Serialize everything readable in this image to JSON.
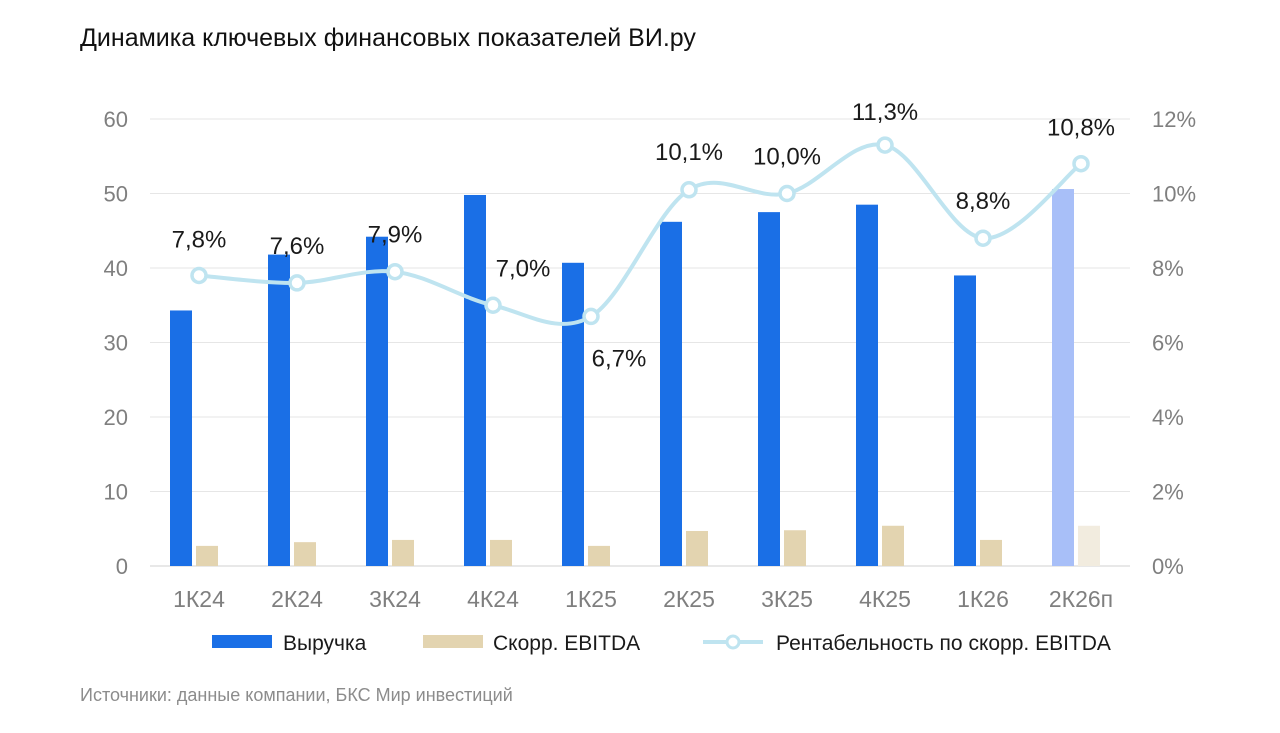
{
  "title": "Динамика ключевых финансовых показателей ВИ.ру",
  "source": "Источники: данные компании, БКС Мир инвестиций",
  "chart_data": {
    "type": "bar",
    "categories": [
      "1К24",
      "2К24",
      "3К24",
      "4К24",
      "1К25",
      "2К25",
      "3К25",
      "4К25",
      "1К26",
      "2К26п"
    ],
    "y_left": {
      "min": 0,
      "max": 60,
      "ticks": [
        "0",
        "10",
        "20",
        "30",
        "40",
        "50",
        "60"
      ],
      "tick_values": [
        0,
        10,
        20,
        30,
        40,
        50,
        60
      ]
    },
    "y_right": {
      "min": 0,
      "max": 12,
      "ticks": [
        "0%",
        "2%",
        "4%",
        "6%",
        "8%",
        "10%",
        "12%"
      ],
      "tick_values": [
        0,
        2,
        4,
        6,
        8,
        10,
        12
      ]
    },
    "grid": true,
    "legend_position": "bottom",
    "forecast_last_category": true,
    "series": [
      {
        "name": "Выручка",
        "kind": "bar",
        "axis": "left",
        "color": "#1a6fe6",
        "forecast_color": "#a8bff8",
        "values": [
          34.3,
          41.8,
          44.2,
          49.8,
          40.7,
          46.2,
          47.5,
          48.5,
          39.0,
          50.6
        ]
      },
      {
        "name": "Скорр. EBITDA",
        "kind": "bar",
        "axis": "left",
        "color": "#e3d4b0",
        "forecast_color": "#f2ecdf",
        "values": [
          2.7,
          3.2,
          3.5,
          3.5,
          2.7,
          4.7,
          4.8,
          5.4,
          3.5,
          5.4
        ]
      },
      {
        "name": "Рентабельность по скорр. EBITDA",
        "kind": "line",
        "axis": "right",
        "color": "#bfe4f0",
        "values": [
          7.8,
          7.6,
          7.9,
          7.0,
          6.7,
          10.1,
          10.0,
          11.3,
          8.8,
          10.8
        ],
        "labels": [
          "7,8%",
          "7,6%",
          "7,9%",
          "7,0%",
          "6,7%",
          "10,1%",
          "10,0%",
          "11,3%",
          "8,8%",
          "10,8%"
        ]
      }
    ]
  }
}
